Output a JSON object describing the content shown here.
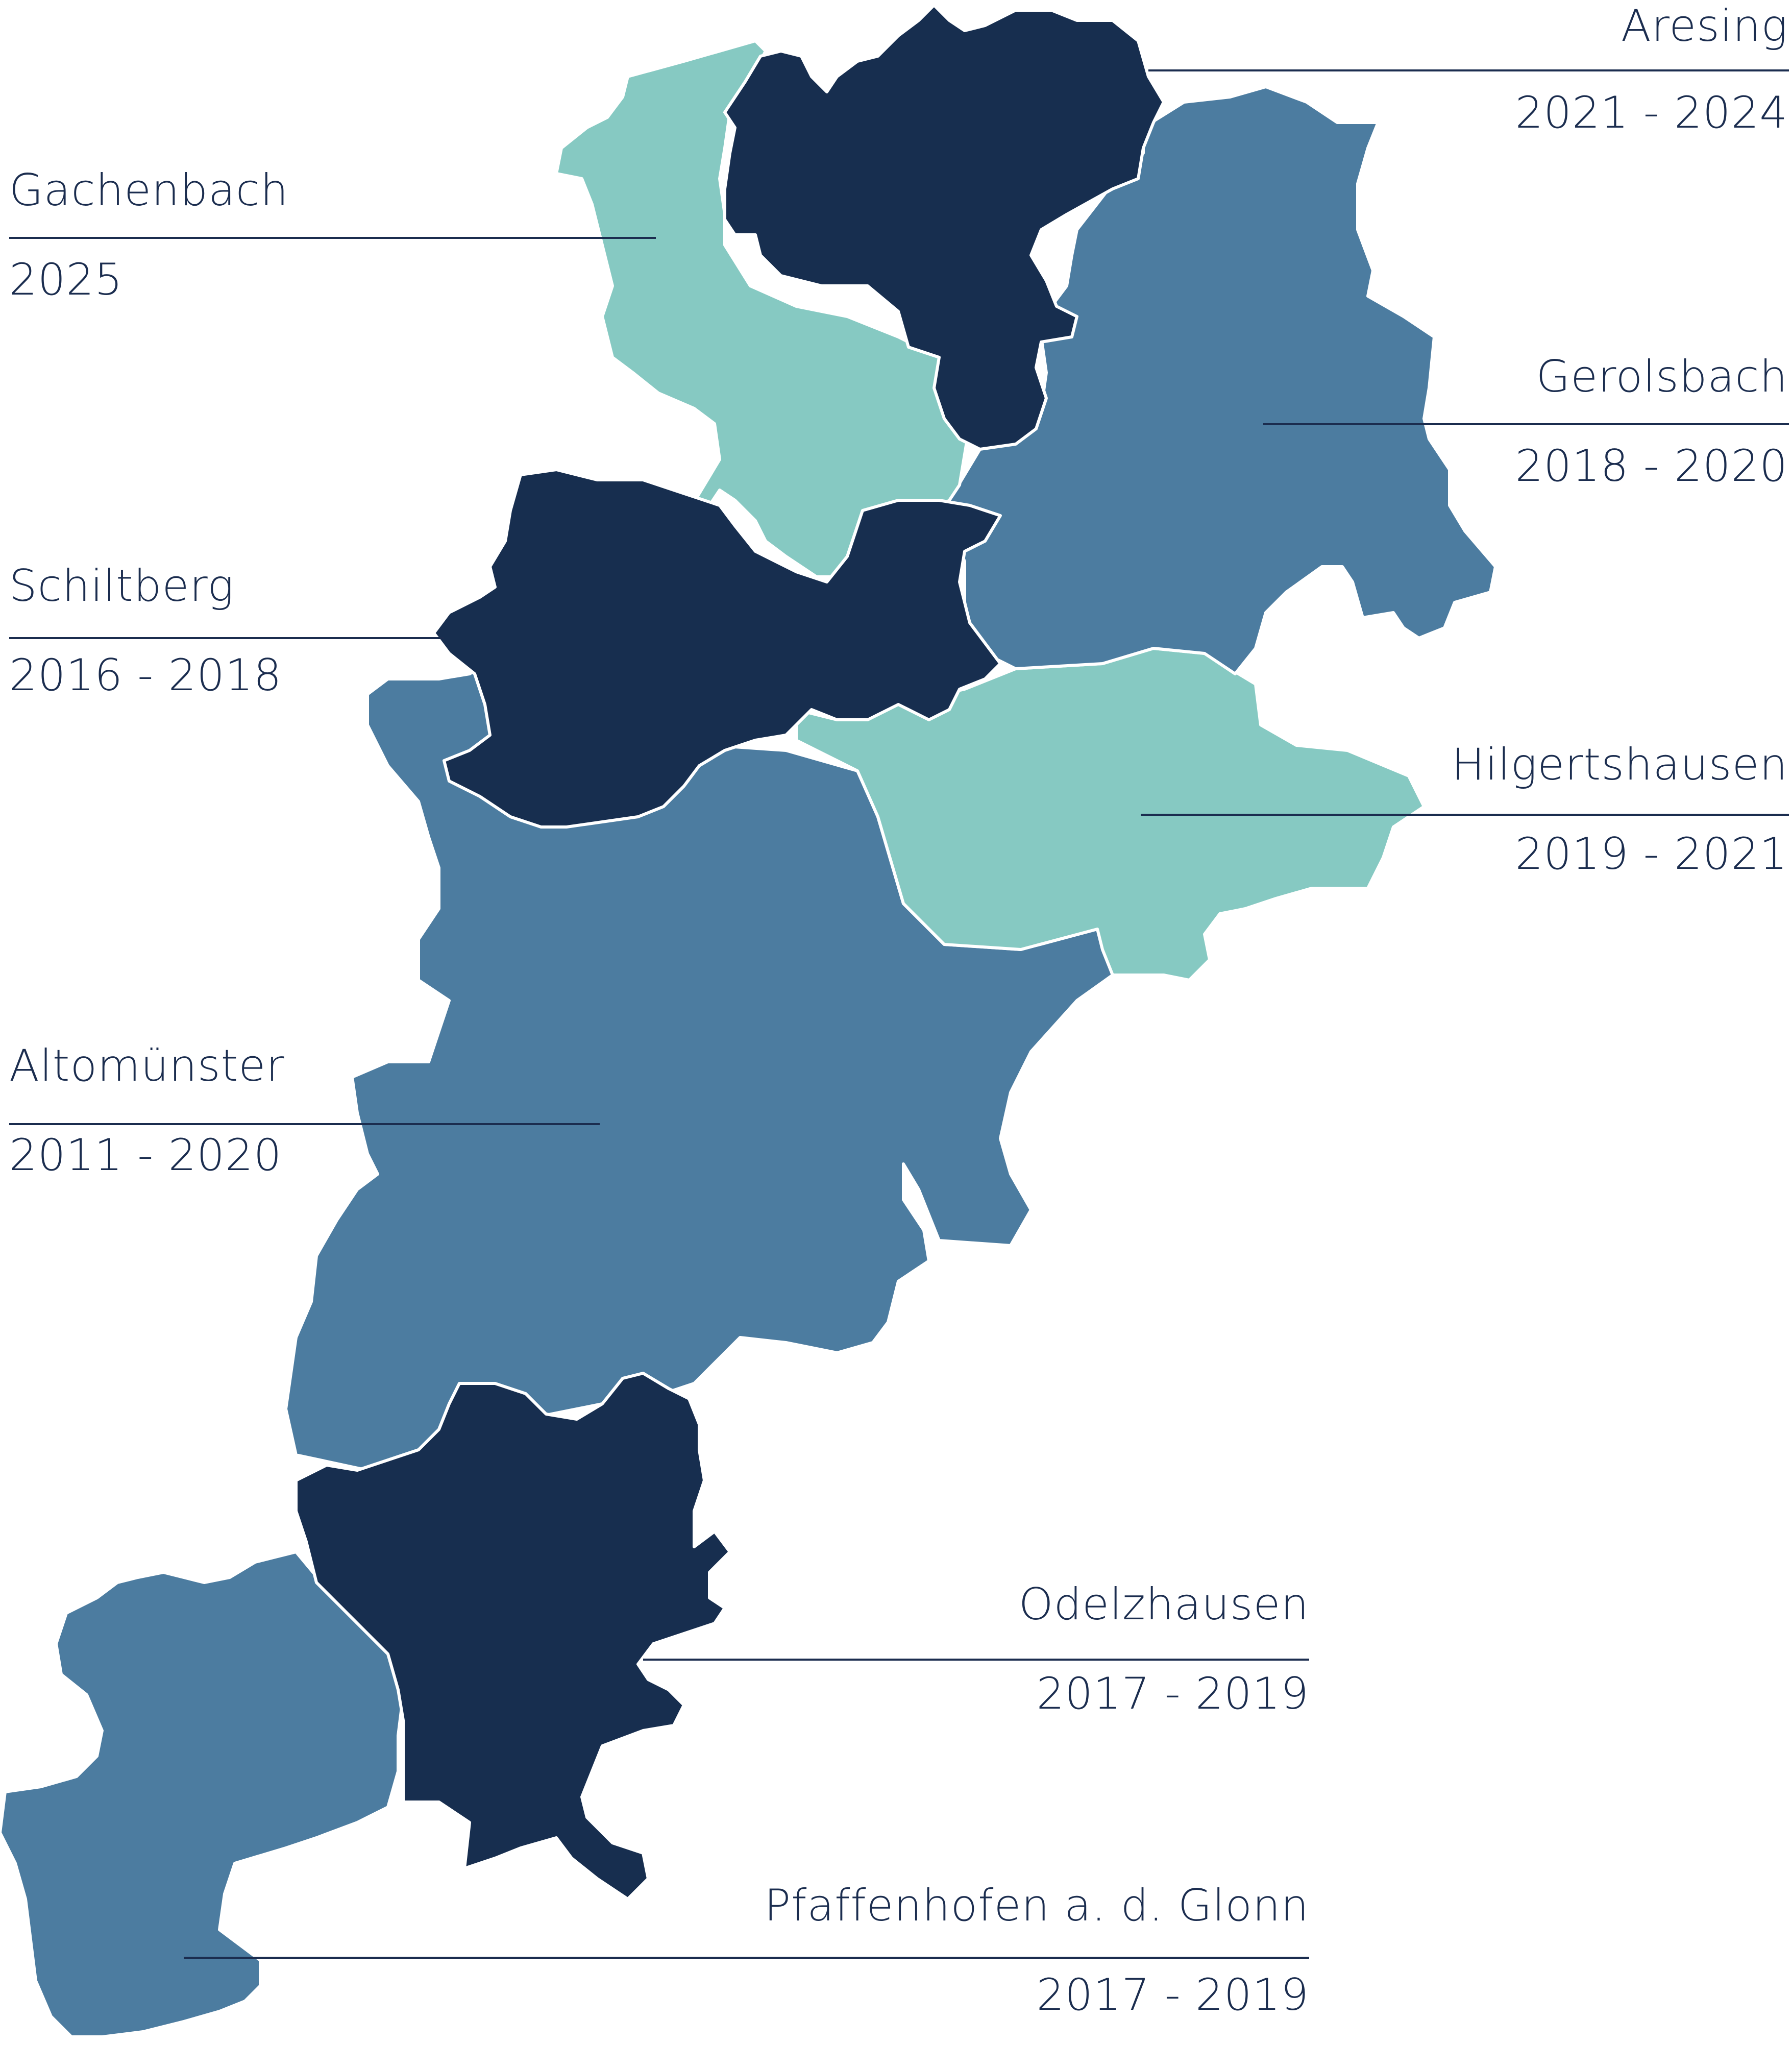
{
  "colors": {
    "dark_navy": "#172e4f",
    "steel_blue": "#4c7ca0",
    "mint": "#86c9c2",
    "text": "#1b2d4f",
    "leader_line": "#1b2d4f",
    "background": "#ffffff"
  },
  "regions": [
    {
      "id": "gachenbach",
      "name": "Gachenbach",
      "years": "2025",
      "fill": "mint"
    },
    {
      "id": "aresing",
      "name": "Aresing",
      "years": "2021 - 2024",
      "fill": "dark_navy"
    },
    {
      "id": "gerolsbach",
      "name": "Gerolsbach",
      "years": "2018 - 2020",
      "fill": "steel_blue"
    },
    {
      "id": "schiltberg",
      "name": "Schiltberg",
      "years": "2016 - 2018",
      "fill": "dark_navy"
    },
    {
      "id": "hilgertshausen",
      "name": "Hilgertshausen",
      "years": "2019 - 2021",
      "fill": "mint"
    },
    {
      "id": "altomuenster",
      "name": "Altomünster",
      "years": "2011 - 2020",
      "fill": "steel_blue"
    },
    {
      "id": "odelzhausen",
      "name": "Odelzhausen",
      "years": "2017 - 2019",
      "fill": "dark_navy"
    },
    {
      "id": "pfaffenhofen",
      "name": "Pfaffenhofen a. d. Glonn",
      "years": "2017 - 2019",
      "fill": "steel_blue"
    }
  ]
}
